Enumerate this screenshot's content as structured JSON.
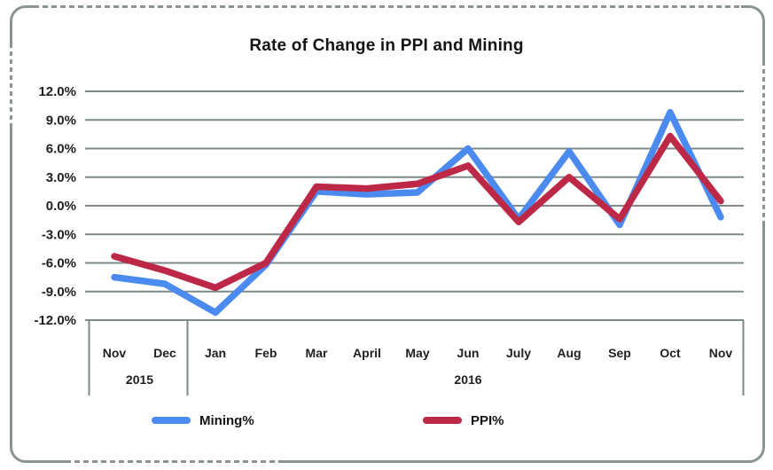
{
  "title": "Rate of Change in PPI and Mining",
  "colors": {
    "mining_blue": "#4b8bf0",
    "ppi_red": "#be2847",
    "grid_gray": "#7d8a89",
    "frame_gray": "#8a9593",
    "text": "#1f1f1f"
  },
  "chart_data": {
    "type": "line",
    "title": "Rate of Change in PPI and Mining",
    "grid": true,
    "legend_position": "bottom",
    "ylim": [
      -12,
      12
    ],
    "y_axis": {
      "ticks": [
        {
          "label": "12.0%",
          "value": 12
        },
        {
          "label": "9.0%",
          "value": 9
        },
        {
          "label": "6.0%",
          "value": 6
        },
        {
          "label": "3.0%",
          "value": 3
        },
        {
          "label": "0.0%",
          "value": 0
        },
        {
          "label": "-3.0%",
          "value": -3
        },
        {
          "label": "-6.0%",
          "value": -6
        },
        {
          "label": "-9.0%",
          "value": -9
        },
        {
          "label": "-12.0%",
          "value": -12
        }
      ]
    },
    "x_categories": [
      "Nov",
      "Dec",
      "Jan",
      "Feb",
      "Mar",
      "April",
      "May",
      "Jun",
      "July",
      "Aug",
      "Sep",
      "Oct",
      "Nov"
    ],
    "x_groups": [
      {
        "label": "2015",
        "start": 0,
        "end": 1
      },
      {
        "label": "2016",
        "start": 2,
        "end": 12
      }
    ],
    "series": [
      {
        "name": "Mining%",
        "color": "#4b8bf0",
        "values": [
          -7.5,
          -8.2,
          -11.2,
          -6.2,
          1.5,
          1.2,
          1.4,
          6.0,
          -1.4,
          5.7,
          -2.0,
          9.8,
          -1.2
        ]
      },
      {
        "name": "PPI%",
        "color": "#be2847",
        "values": [
          -5.3,
          -6.8,
          -8.6,
          -6.0,
          2.0,
          1.8,
          2.3,
          4.2,
          -1.7,
          3.0,
          -1.4,
          7.3,
          0.5
        ]
      }
    ]
  },
  "legend": {
    "items": [
      {
        "label": "Mining%",
        "color": "#4b8bf0"
      },
      {
        "label": "PPI%",
        "color": "#be2847"
      }
    ]
  }
}
